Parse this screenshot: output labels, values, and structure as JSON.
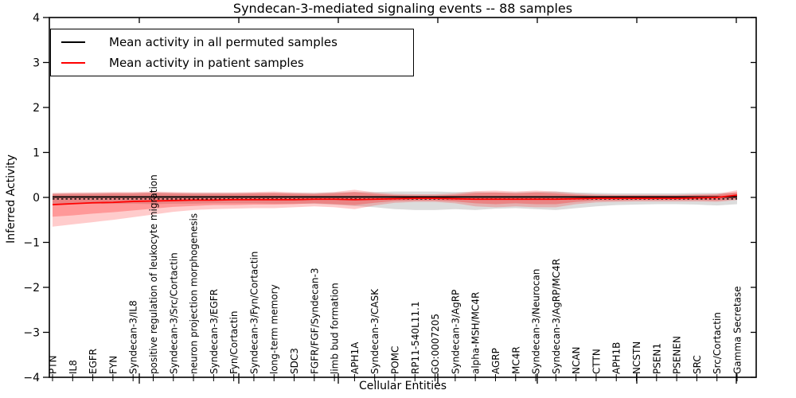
{
  "figure": {
    "title": "Syndecan-3-mediated signaling events -- 88 samples"
  },
  "axes": {
    "xlabel": "Cellular Entities",
    "ylabel": "Inferred Activity",
    "yticklabels": [
      "4",
      "3",
      "2",
      "1",
      "0",
      "−1",
      "−2",
      "−3",
      "−4"
    ]
  },
  "legend": {
    "items": [
      {
        "label": "Mean activity in all permuted samples",
        "color": "#000000"
      },
      {
        "label": "Mean activity in patient samples",
        "color": "#ff0000"
      }
    ]
  },
  "chart_data": {
    "type": "line",
    "title": "Syndecan-3-mediated signaling events -- 88 samples",
    "xlabel": "Cellular Entities",
    "ylabel": "Inferred Activity",
    "ylim": [
      -4,
      4
    ],
    "yticks": [
      4,
      3,
      2,
      1,
      0,
      -1,
      -2,
      -3,
      -4
    ],
    "grid": false,
    "legend_position": "upper left",
    "categories": [
      "PTN",
      "IL8",
      "EGFR",
      "FYN",
      "Syndecan-3/IL8",
      "positive regulation of leukocyte migration",
      "Syndecan-3/Src/Cortactin",
      "neuron projection morphogenesis",
      "Syndecan-3/EGFR",
      "Fyn/Cortactin",
      "Syndecan-3/Fyn/Cortactin",
      "long-term memory",
      "SDC3",
      "FGFR/FGF/Syndecan-3",
      "limb bud formation",
      "APH1A",
      "Syndecan-3/CASK",
      "POMC",
      "RP11-540L11.1",
      "GO:0007205",
      "Syndecan-3/AgRP",
      "alpha-MSH/MC4R",
      "AGRP",
      "MC4R",
      "Syndecan-3/Neurocan",
      "Syndecan-3/AgRP/MC4R",
      "NCAN",
      "CTTN",
      "APH1B",
      "NCSTN",
      "PSEN1",
      "PSENEN",
      "SRC",
      "Src/Cortactin",
      "Gamma Secretase"
    ],
    "series": [
      {
        "name": "Mean activity in all permuted samples",
        "color": "#000000",
        "style": "solid",
        "constant": 0.01
      },
      {
        "name": "Mean activity in patient samples",
        "color": "#ff0000",
        "style": "solid",
        "values": [
          -0.16,
          -0.14,
          -0.12,
          -0.11,
          -0.09,
          -0.08,
          -0.07,
          -0.06,
          -0.06,
          -0.05,
          -0.05,
          -0.05,
          -0.05,
          -0.04,
          -0.04,
          -0.05,
          -0.04,
          -0.03,
          -0.02,
          -0.02,
          -0.03,
          -0.04,
          -0.04,
          -0.04,
          -0.04,
          -0.04,
          -0.03,
          -0.02,
          -0.02,
          -0.02,
          -0.02,
          -0.02,
          -0.01,
          0.0,
          0.05
        ]
      }
    ],
    "dashed_reference": {
      "name": "zero-reference-dashed",
      "color": "#000000",
      "value": -0.035
    },
    "bands": [
      {
        "name": "permuted-samples-std",
        "color": "#8c8c8c",
        "opacity": 0.3,
        "upper": [
          0.09,
          0.09,
          0.1,
          0.1,
          0.1,
          0.11,
          0.1,
          0.1,
          0.1,
          0.1,
          0.1,
          0.1,
          0.1,
          0.1,
          0.11,
          0.12,
          0.12,
          0.13,
          0.13,
          0.13,
          0.12,
          0.12,
          0.11,
          0.11,
          0.12,
          0.13,
          0.11,
          0.1,
          0.09,
          0.09,
          0.09,
          0.09,
          0.1,
          0.1,
          0.1
        ],
        "lower": [
          -0.14,
          -0.14,
          -0.14,
          -0.14,
          -0.14,
          -0.15,
          -0.14,
          -0.14,
          -0.13,
          -0.13,
          -0.13,
          -0.14,
          -0.14,
          -0.14,
          -0.16,
          -0.19,
          -0.22,
          -0.26,
          -0.28,
          -0.28,
          -0.26,
          -0.28,
          -0.25,
          -0.24,
          -0.26,
          -0.28,
          -0.24,
          -0.2,
          -0.17,
          -0.16,
          -0.15,
          -0.15,
          -0.16,
          -0.18,
          -0.15
        ]
      },
      {
        "name": "patient-samples-std-outer",
        "color": "#ff0000",
        "opacity": 0.2,
        "upper": [
          0.1,
          0.11,
          0.11,
          0.12,
          0.12,
          0.13,
          0.12,
          0.11,
          0.11,
          0.11,
          0.12,
          0.13,
          0.11,
          0.1,
          0.12,
          0.17,
          0.11,
          0.08,
          0.07,
          0.07,
          0.09,
          0.14,
          0.15,
          0.13,
          0.15,
          0.13,
          0.09,
          0.07,
          0.06,
          0.06,
          0.06,
          0.06,
          0.07,
          0.08,
          0.16
        ],
        "lower": [
          -0.65,
          -0.6,
          -0.55,
          -0.5,
          -0.44,
          -0.38,
          -0.32,
          -0.28,
          -0.26,
          -0.25,
          -0.24,
          -0.24,
          -0.22,
          -0.2,
          -0.22,
          -0.26,
          -0.18,
          -0.12,
          -0.1,
          -0.1,
          -0.13,
          -0.2,
          -0.22,
          -0.2,
          -0.22,
          -0.22,
          -0.15,
          -0.11,
          -0.1,
          -0.09,
          -0.09,
          -0.09,
          -0.09,
          -0.1,
          -0.06
        ]
      },
      {
        "name": "patient-samples-std-inner",
        "color": "#ff0000",
        "opacity": 0.25,
        "upper": [
          0.07,
          0.08,
          0.08,
          0.09,
          0.09,
          0.1,
          0.09,
          0.08,
          0.08,
          0.08,
          0.09,
          0.1,
          0.08,
          0.07,
          0.09,
          0.12,
          0.08,
          0.05,
          0.04,
          0.04,
          0.06,
          0.1,
          0.11,
          0.09,
          0.11,
          0.09,
          0.06,
          0.04,
          0.04,
          0.04,
          0.04,
          0.04,
          0.05,
          0.06,
          0.12
        ],
        "lower": [
          -0.43,
          -0.4,
          -0.36,
          -0.33,
          -0.29,
          -0.25,
          -0.21,
          -0.19,
          -0.17,
          -0.17,
          -0.16,
          -0.16,
          -0.15,
          -0.13,
          -0.15,
          -0.17,
          -0.12,
          -0.08,
          -0.07,
          -0.07,
          -0.09,
          -0.13,
          -0.15,
          -0.13,
          -0.15,
          -0.15,
          -0.1,
          -0.07,
          -0.07,
          -0.06,
          -0.06,
          -0.06,
          -0.06,
          -0.07,
          -0.04
        ]
      }
    ]
  }
}
